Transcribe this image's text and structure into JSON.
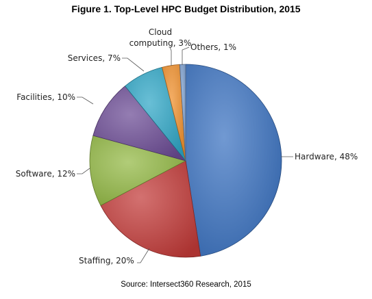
{
  "chart_data": {
    "type": "pie",
    "title": "Figure 1. Top-Level HPC Budget Distribution, 2015",
    "source": "Source: Intersect360 Research, 2015",
    "slices": [
      {
        "label": "Hardware",
        "value": 48,
        "display": "Hardware, 48%",
        "color": "#3a72c0"
      },
      {
        "label": "Staffing",
        "value": 20,
        "display": "Staffing, 20%",
        "color": "#c23a38"
      },
      {
        "label": "Software",
        "value": 12,
        "display": "Software, 12%",
        "color": "#92b843"
      },
      {
        "label": "Facilities",
        "value": 10,
        "display": "Facilities, 10%",
        "color": "#6b4a94"
      },
      {
        "label": "Services",
        "value": 7,
        "display": "Services, 7%",
        "color": "#2ea6c6"
      },
      {
        "label": "Cloud computing",
        "value": 3,
        "display": [
          "Cloud",
          "computing, 3%"
        ],
        "color": "#f08f2a"
      },
      {
        "label": "Others",
        "value": 1,
        "display": "Others, 1%",
        "color": "#7d9fcf"
      }
    ]
  }
}
